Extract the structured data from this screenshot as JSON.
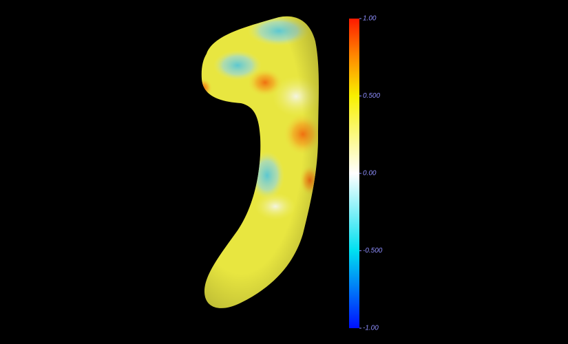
{
  "colorbar": {
    "lim": [
      -1,
      1
    ],
    "ticks": [
      {
        "value": 1,
        "label": "1.00"
      },
      {
        "value": 0.5,
        "label": "0.500"
      },
      {
        "value": 0,
        "label": "0.00"
      },
      {
        "value": -0.5,
        "label": "-0.500"
      },
      {
        "value": -1,
        "label": "-1.00"
      }
    ]
  }
}
